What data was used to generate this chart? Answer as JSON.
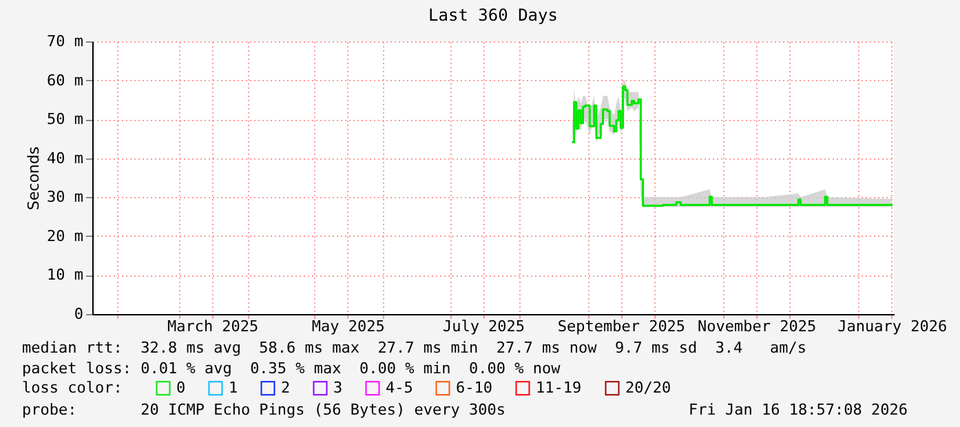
{
  "chart_data": {
    "type": "line",
    "title": "Last 360 Days",
    "ylabel": "Seconds",
    "x": [
      "2025-08-25",
      "2025-08-26",
      "2025-08-27",
      "2025-08-28",
      "2025-08-29",
      "2025-08-30",
      "2025-08-31",
      "2025-09-02",
      "2025-09-04",
      "2025-09-05",
      "2025-09-07",
      "2025-09-08",
      "2025-09-10",
      "2025-09-11",
      "2025-09-13",
      "2025-09-14",
      "2025-09-15",
      "2025-09-16",
      "2025-09-17",
      "2025-09-18",
      "2025-09-19",
      "2025-09-21",
      "2025-09-22",
      "2025-09-24",
      "2025-09-25",
      "2025-09-26",
      "2025-10-05",
      "2025-10-11",
      "2025-10-13",
      "2025-10-26",
      "2025-10-27",
      "2025-11-20",
      "2025-12-05",
      "2025-12-06",
      "2025-12-17",
      "2025-12-18",
      "2026-01-16"
    ],
    "series": [
      {
        "name": "0",
        "color": "#00e600",
        "values": [
          44.1,
          54.4,
          47.6,
          52.3,
          49,
          53.2,
          53.5,
          48.2,
          53.5,
          45.2,
          48.8,
          52.5,
          52.1,
          48.3,
          46.9,
          49.7,
          52.1,
          47.8,
          58.4,
          57.5,
          53.7,
          54.7,
          54.1,
          55.1,
          34.6,
          27.8,
          28,
          28.7,
          28,
          30.1,
          28,
          28,
          29.4,
          28,
          30.1,
          28,
          27.7
        ],
        "lower": [
          44,
          50,
          46,
          50,
          47,
          50,
          50,
          46,
          50,
          44,
          47,
          50,
          50,
          47,
          46,
          48,
          50,
          46,
          56,
          55,
          52,
          53,
          52,
          53,
          30,
          27.5,
          27.5,
          27.5,
          27.5,
          27.5,
          27.5,
          27.5,
          27.5,
          27.5,
          27.5,
          27.5,
          27.5
        ],
        "upper": [
          46,
          58,
          52,
          56,
          54,
          56,
          56,
          52,
          56,
          50,
          53,
          56,
          56,
          53,
          51,
          54,
          56,
          52,
          60,
          60,
          57,
          57,
          57,
          57,
          38,
          30,
          30,
          30,
          30,
          32,
          30,
          30,
          31,
          30,
          32,
          30,
          29.5
        ]
      },
      {
        "name": "1",
        "color": "#00bbff",
        "values": [
          null,
          null,
          null,
          null,
          null,
          null,
          null,
          null,
          null,
          null,
          null,
          null,
          null,
          null,
          null,
          null,
          null,
          null,
          null,
          null,
          null,
          null,
          null,
          null,
          null,
          null,
          null,
          null,
          null,
          null,
          null,
          null,
          null,
          null,
          null,
          null,
          null
        ]
      },
      {
        "name": "2",
        "color": "#0022ff",
        "values": [
          null,
          null,
          null,
          null,
          null,
          null,
          null,
          null,
          null,
          null,
          null,
          null,
          null,
          null,
          null,
          null,
          null,
          null,
          null,
          null,
          null,
          null,
          null,
          null,
          null,
          null,
          null,
          null,
          null,
          null,
          null,
          null,
          null,
          null,
          null,
          null,
          null
        ]
      },
      {
        "name": "3",
        "color": "#8a00ff",
        "values": [
          null,
          null,
          null,
          null,
          null,
          null,
          null,
          null,
          null,
          null,
          null,
          null,
          null,
          null,
          null,
          null,
          null,
          null,
          null,
          null,
          null,
          null,
          null,
          null,
          null,
          null,
          null,
          null,
          null,
          null,
          null,
          null,
          null,
          null,
          null,
          null,
          null
        ]
      },
      {
        "name": "4-5",
        "color": "#ff00ff",
        "values": [
          null,
          null,
          null,
          null,
          null,
          null,
          null,
          null,
          null,
          null,
          null,
          null,
          null,
          null,
          null,
          null,
          null,
          null,
          null,
          null,
          null,
          null,
          null,
          null,
          null,
          null,
          null,
          null,
          null,
          null,
          null,
          null,
          null,
          null,
          null,
          null,
          null
        ]
      },
      {
        "name": "6-10",
        "color": "#ff5500",
        "values": [
          null,
          null,
          null,
          null,
          null,
          null,
          null,
          null,
          null,
          null,
          null,
          null,
          null,
          null,
          null,
          null,
          null,
          null,
          null,
          null,
          null,
          null,
          null,
          null,
          null,
          null,
          null,
          null,
          null,
          null,
          null,
          null,
          null,
          null,
          null,
          null,
          null
        ]
      },
      {
        "name": "11-19",
        "color": "#ff0000",
        "values": [
          null,
          null,
          null,
          null,
          null,
          null,
          null,
          null,
          null,
          null,
          null,
          null,
          null,
          null,
          null,
          null,
          null,
          null,
          null,
          null,
          null,
          null,
          null,
          null,
          null,
          null,
          null,
          null,
          null,
          null,
          null,
          null,
          null,
          null,
          null,
          null,
          null
        ]
      },
      {
        "name": "20/20",
        "color": "#a10000",
        "values": [
          null,
          null,
          null,
          null,
          null,
          null,
          null,
          null,
          null,
          null,
          null,
          null,
          null,
          null,
          null,
          null,
          null,
          null,
          null,
          null,
          null,
          null,
          null,
          null,
          null,
          null,
          null,
          null,
          null,
          null,
          null,
          null,
          null,
          null,
          null,
          null,
          null
        ]
      }
    ],
    "legend_title": "loss color:",
    "legend": "bottom",
    "xlim": [
      "2025-01-21",
      "2026-01-17"
    ],
    "xticks": [
      {
        "value": "2025-02-01",
        "label": null
      },
      {
        "value": "2025-03-01",
        "label": null
      },
      {
        "value": "2025-03-16",
        "label": "March 2025"
      },
      {
        "value": "2025-04-01",
        "label": null
      },
      {
        "value": "2025-05-01",
        "label": null
      },
      {
        "value": "2025-05-16",
        "label": "May 2025"
      },
      {
        "value": "2025-06-01",
        "label": null
      },
      {
        "value": "2025-07-01",
        "label": null
      },
      {
        "value": "2025-07-16",
        "label": "July 2025"
      },
      {
        "value": "2025-08-01",
        "label": null
      },
      {
        "value": "2025-09-01",
        "label": null
      },
      {
        "value": "2025-09-16",
        "label": "September 2025"
      },
      {
        "value": "2025-10-01",
        "label": null
      },
      {
        "value": "2025-11-01",
        "label": null
      },
      {
        "value": "2025-11-16",
        "label": "November 2025"
      },
      {
        "value": "2025-12-01",
        "label": null
      },
      {
        "value": "2026-01-01",
        "label": null
      },
      {
        "value": "2026-01-16",
        "label": "January 2026"
      }
    ],
    "ylim": [
      0,
      70
    ],
    "yticks": [
      0,
      {
        "value": 10,
        "label": "10 m"
      },
      {
        "value": 20,
        "label": "20 m"
      },
      {
        "value": 30,
        "label": "30 m"
      },
      {
        "value": 40,
        "label": "40 m"
      },
      {
        "value": 50,
        "label": "50 m"
      },
      {
        "value": 60,
        "label": "60 m"
      },
      {
        "value": 70,
        "label": "70 m"
      }
    ],
    "grid": true,
    "annotations": [
      "median rtt:  32.8 ms avg  58.6 ms max  27.7 ms min  27.7 ms now  9.7 ms sd  3.4   am/s",
      "packet loss: 0.01 % avg  0.35 % max  0.00 % min  0.00 % now",
      "probe:       20 ICMP Echo Pings (56 Bytes) every 300s",
      "Fri Jan 16 18:57:08 2026"
    ]
  }
}
